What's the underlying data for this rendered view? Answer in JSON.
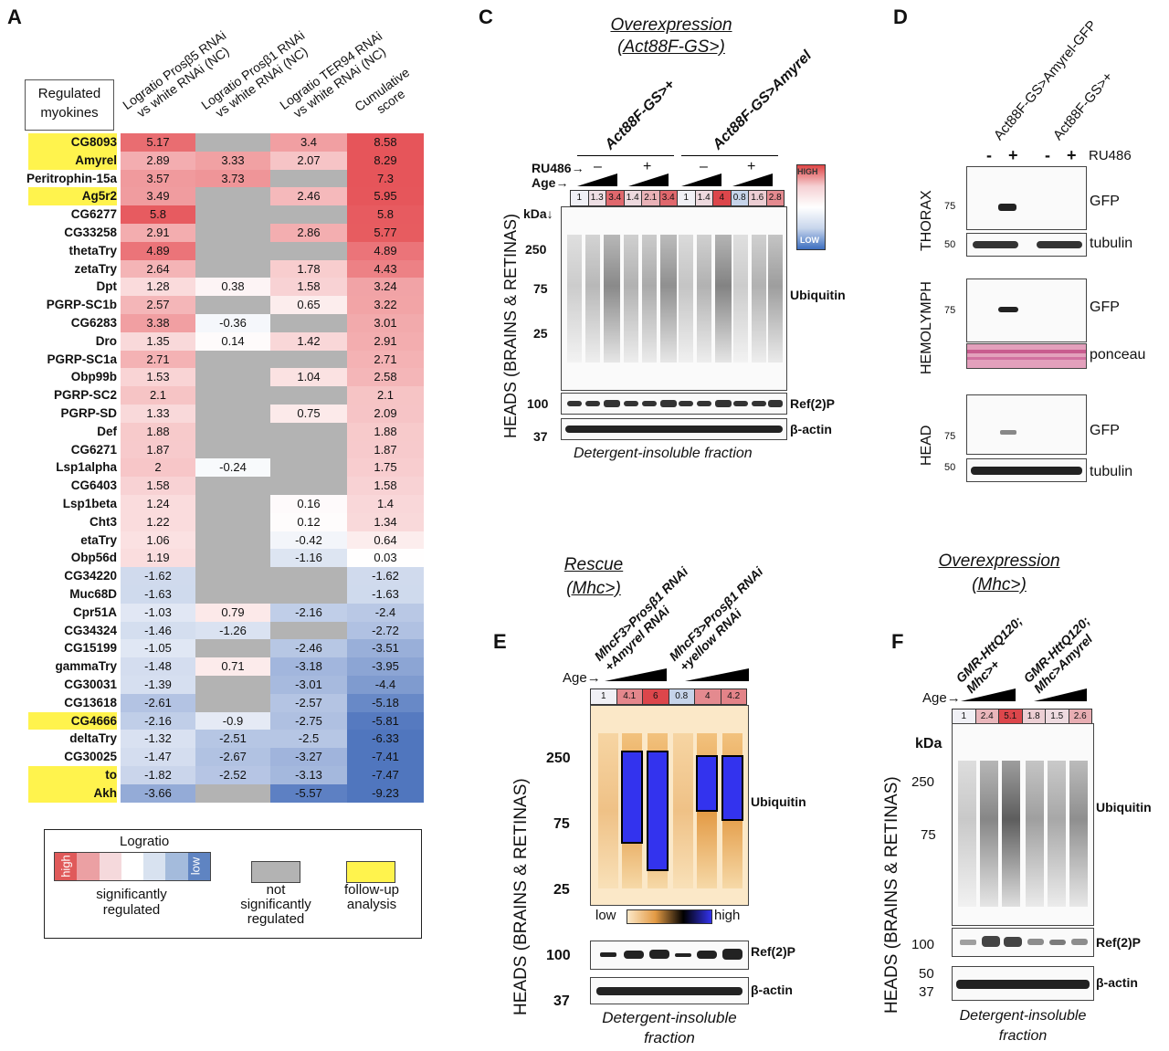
{
  "panel_a": {
    "label": "A",
    "box_label": "Regulated\nmyokines",
    "col_headers": [
      "Logratio Prosβ5 RNAi\nvs white RNAi (NC)",
      "Logratio Prosβ1 RNAi\nvs white RNAi (NC)",
      "Logratio TER94 RNAi\nvs white RNAi (NC)",
      "Cumulative\nscore"
    ],
    "rows": [
      {
        "gene": "CG8093",
        "hl": true,
        "v": [
          "5.17",
          null,
          "3.4",
          "8.58"
        ]
      },
      {
        "gene": "Amyrel",
        "hl": true,
        "v": [
          "2.89",
          "3.33",
          "2.07",
          "8.29"
        ]
      },
      {
        "gene": "Peritrophin-15a",
        "hl": false,
        "v": [
          "3.57",
          "3.73",
          null,
          "7.3"
        ]
      },
      {
        "gene": "Ag5r2",
        "hl": true,
        "v": [
          "3.49",
          null,
          "2.46",
          "5.95"
        ]
      },
      {
        "gene": "CG6277",
        "hl": false,
        "v": [
          "5.8",
          null,
          null,
          "5.8"
        ]
      },
      {
        "gene": "CG33258",
        "hl": false,
        "v": [
          "2.91",
          null,
          "2.86",
          "5.77"
        ]
      },
      {
        "gene": "thetaTry",
        "hl": false,
        "v": [
          "4.89",
          null,
          null,
          "4.89"
        ]
      },
      {
        "gene": "zetaTry",
        "hl": false,
        "v": [
          "2.64",
          null,
          "1.78",
          "4.43"
        ]
      },
      {
        "gene": "Dpt",
        "hl": false,
        "v": [
          "1.28",
          "0.38",
          "1.58",
          "3.24"
        ]
      },
      {
        "gene": "PGRP-SC1b",
        "hl": false,
        "v": [
          "2.57",
          null,
          "0.65",
          "3.22"
        ]
      },
      {
        "gene": "CG6283",
        "hl": false,
        "v": [
          "3.38",
          "-0.36",
          null,
          "3.01"
        ]
      },
      {
        "gene": "Dro",
        "hl": false,
        "v": [
          "1.35",
          "0.14",
          "1.42",
          "2.91"
        ]
      },
      {
        "gene": "PGRP-SC1a",
        "hl": false,
        "v": [
          "2.71",
          null,
          null,
          "2.71"
        ]
      },
      {
        "gene": "Obp99b",
        "hl": false,
        "v": [
          "1.53",
          null,
          "1.04",
          "2.58"
        ]
      },
      {
        "gene": "PGRP-SC2",
        "hl": false,
        "v": [
          "2.1",
          null,
          null,
          "2.1"
        ]
      },
      {
        "gene": "PGRP-SD",
        "hl": false,
        "v": [
          "1.33",
          null,
          "0.75",
          "2.09"
        ]
      },
      {
        "gene": "Def",
        "hl": false,
        "v": [
          "1.88",
          null,
          null,
          "1.88"
        ]
      },
      {
        "gene": "CG6271",
        "hl": false,
        "v": [
          "1.87",
          null,
          null,
          "1.87"
        ]
      },
      {
        "gene": "Lsp1alpha",
        "hl": false,
        "v": [
          "2",
          "-0.24",
          null,
          "1.75"
        ]
      },
      {
        "gene": "CG6403",
        "hl": false,
        "v": [
          "1.58",
          null,
          null,
          "1.58"
        ]
      },
      {
        "gene": "Lsp1beta",
        "hl": false,
        "v": [
          "1.24",
          null,
          "0.16",
          "1.4"
        ]
      },
      {
        "gene": "Cht3",
        "hl": false,
        "v": [
          "1.22",
          null,
          "0.12",
          "1.34"
        ]
      },
      {
        "gene": "etaTry",
        "hl": false,
        "v": [
          "1.06",
          null,
          "-0.42",
          "0.64"
        ]
      },
      {
        "gene": "Obp56d",
        "hl": false,
        "v": [
          "1.19",
          null,
          "-1.16",
          "0.03"
        ]
      },
      {
        "gene": "CG34220",
        "hl": false,
        "v": [
          "-1.62",
          null,
          null,
          "-1.62"
        ]
      },
      {
        "gene": "Muc68D",
        "hl": false,
        "v": [
          "-1.63",
          null,
          null,
          "-1.63"
        ]
      },
      {
        "gene": "Cpr51A",
        "hl": false,
        "v": [
          "-1.03",
          "0.79",
          "-2.16",
          "-2.4"
        ]
      },
      {
        "gene": "CG34324",
        "hl": false,
        "v": [
          "-1.46",
          "-1.26",
          null,
          "-2.72"
        ]
      },
      {
        "gene": "CG15199",
        "hl": false,
        "v": [
          "-1.05",
          null,
          "-2.46",
          "-3.51"
        ]
      },
      {
        "gene": "gammaTry",
        "hl": false,
        "v": [
          "-1.48",
          "0.71",
          "-3.18",
          "-3.95"
        ]
      },
      {
        "gene": "CG30031",
        "hl": false,
        "v": [
          "-1.39",
          null,
          "-3.01",
          "-4.4"
        ]
      },
      {
        "gene": "CG13618",
        "hl": false,
        "v": [
          "-2.61",
          null,
          "-2.57",
          "-5.18"
        ]
      },
      {
        "gene": "CG4666",
        "hl": true,
        "v": [
          "-2.16",
          "-0.9",
          "-2.75",
          "-5.81"
        ]
      },
      {
        "gene": "deltaTry",
        "hl": false,
        "v": [
          "-1.32",
          "-2.51",
          "-2.5",
          "-6.33"
        ]
      },
      {
        "gene": "CG30025",
        "hl": false,
        "v": [
          "-1.47",
          "-2.67",
          "-3.27",
          "-7.41"
        ]
      },
      {
        "gene": "to",
        "hl": true,
        "v": [
          "-1.82",
          "-2.52",
          "-3.13",
          "-7.47"
        ]
      },
      {
        "gene": "Akh",
        "hl": true,
        "v": [
          "-3.66",
          null,
          "-5.57",
          "-9.23"
        ]
      }
    ],
    "legend": {
      "title": "Logratio",
      "high": "high",
      "low": "low",
      "sig": "significantly\nregulated",
      "notsig": "not\nsignificantly\nregulated",
      "followup": "follow-up\nanalysis"
    }
  },
  "panel_c": {
    "label": "C",
    "title1": "Overexpression",
    "title2": "(Act88F-GS>)",
    "geno1": "Act88F-GS>+",
    "geno2": "Act88F-GS>Amyrel",
    "ru486": "RU486→",
    "age": "Age→",
    "minus": "–",
    "plus": "+",
    "quant": [
      "1",
      "1.3",
      "3.4",
      "1.4",
      "2.1",
      "3.4",
      "1",
      "1.4",
      "4",
      "0.8",
      "1.6",
      "2.8"
    ],
    "kda": "kDa↓",
    "mw": [
      "250",
      "75",
      "25",
      "100",
      "37"
    ],
    "ubiquitin": "Ubiquitin",
    "ref2p": "Ref(2)P",
    "actin": "β-actin",
    "side": "HEADS (BRAINS & RETINAS)",
    "footer": "Detergent-insoluble fraction",
    "scale_high": "HIGH",
    "scale_low": "LOW"
  },
  "panel_d": {
    "label": "D",
    "geno1": "Act88F-GS>Amyrel-GFP",
    "geno2": "Act88F-GS>+",
    "signs": [
      "-",
      "+",
      "-",
      "+"
    ],
    "ru486": "RU486",
    "thorax": "THORAX",
    "hemolymph": "HEMOLYMPH",
    "head": "HEAD",
    "gfp": "GFP",
    "tubulin": "tubulin",
    "ponceau": "ponceau",
    "mw75": "75",
    "mw50": "50"
  },
  "panel_e": {
    "label": "E",
    "title1": "Rescue",
    "title2": "(Mhc>)",
    "geno1": "MhcF3>Prosβ1 RNAi\n+Amyrel RNAi",
    "geno2": "MhcF3>Prosβ1 RNAi\n+yellow RNAi",
    "age": "Age→",
    "quant": [
      "1",
      "4.1",
      "6",
      "0.8",
      "4",
      "4.2"
    ],
    "mw": [
      "250",
      "75",
      "25",
      "100",
      "37"
    ],
    "ubiquitin": "Ubiquitin",
    "ref2p": "Ref(2)P",
    "actin": "β-actin",
    "low": "low",
    "high": "high",
    "side": "HEADS (BRAINS & RETINAS)",
    "footer": "Detergent-insoluble\nfraction"
  },
  "panel_f": {
    "label": "F",
    "title1": "Overexpression",
    "title2": "(Mhc>)",
    "geno1": "GMR-HttQ120;\nMhc>+",
    "geno2": "GMR-HttQ120;\nMhc>Amyrel",
    "age": "Age→",
    "quant": [
      "1",
      "2.4",
      "5.1",
      "1.8",
      "1.5",
      "2.6"
    ],
    "kda": "kDa",
    "mw": [
      "250",
      "75",
      "100",
      "50",
      "37"
    ],
    "ubiquitin": "Ubiquitin",
    "ref2p": "Ref(2)P",
    "actin": "β-actin",
    "side": "HEADS (BRAINS & RETINAS)",
    "footer": "Detergent-insoluble\nfraction"
  }
}
